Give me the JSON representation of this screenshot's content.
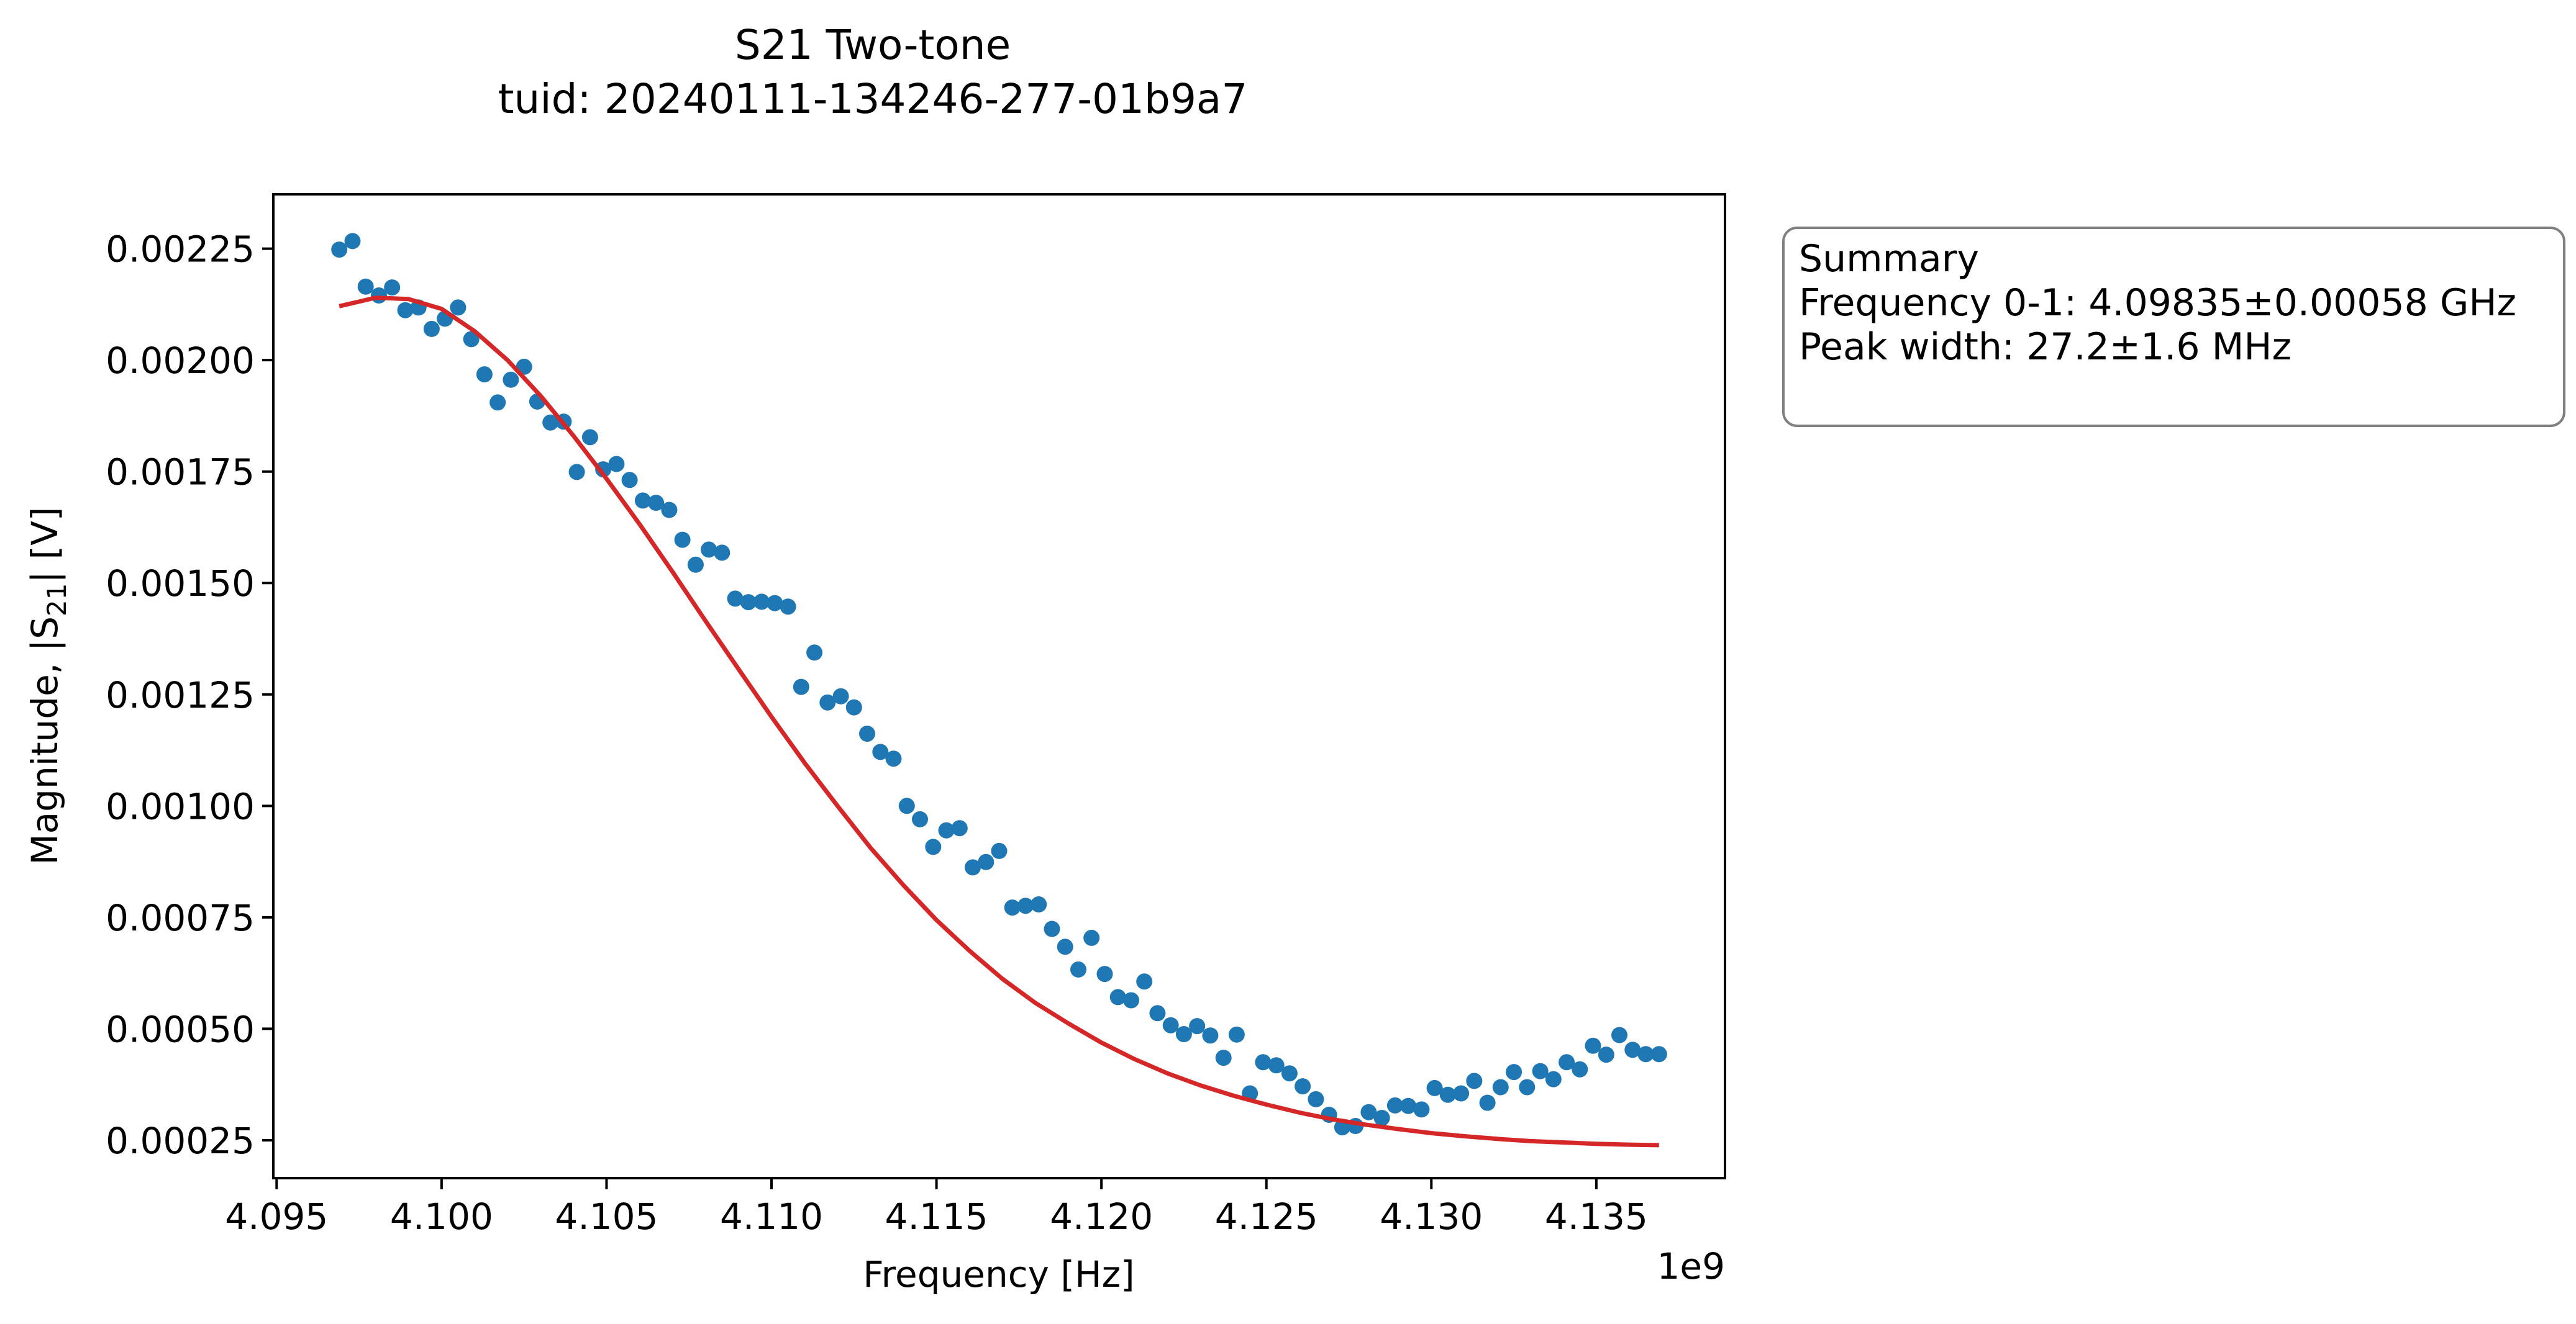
{
  "chart_data": {
    "type": "scatter",
    "title": "S21 Two-tone",
    "subtitle": "tuid: 20240111-134246-277-01b9a7",
    "xlabel": "Frequency [Hz]",
    "ylabel_main": "Magnitude, |S",
    "ylabel_sub": "21",
    "ylabel_end": "| [V]",
    "x_offset_label": "1e9",
    "xlim": [
      4.0949,
      4.1389
    ],
    "ylim": [
      0.000165,
      0.002372
    ],
    "x_ticks": [
      4.095,
      4.1,
      4.105,
      4.11,
      4.115,
      4.12,
      4.125,
      4.13,
      4.135
    ],
    "x_tick_labels": [
      "4.095",
      "4.100",
      "4.105",
      "4.110",
      "4.115",
      "4.120",
      "4.125",
      "4.130",
      "4.135"
    ],
    "y_ticks": [
      0.00025,
      0.0005,
      0.00075,
      0.001,
      0.00125,
      0.0015,
      0.00175,
      0.002,
      0.00225
    ],
    "y_tick_labels": [
      "0.00025",
      "0.00050",
      "0.00075",
      "0.00100",
      "0.00125",
      "0.00150",
      "0.00175",
      "0.00200",
      "0.00225"
    ],
    "grid": false,
    "colors": {
      "data": "#1f77b4",
      "fit": "#d62728",
      "summary_border": "#808080"
    },
    "series": [
      {
        "x": [
          4.0969,
          4.0973,
          4.0977,
          4.0981,
          4.0985,
          4.0989,
          4.0993,
          4.0997,
          4.1001,
          4.1005,
          4.1009,
          4.1013,
          4.1017,
          4.1021,
          4.1025,
          4.1029,
          4.1033,
          4.1037,
          4.1041,
          4.1045,
          4.1049,
          4.1053,
          4.1057,
          4.1061,
          4.1065,
          4.1069,
          4.1073,
          4.1077,
          4.1081,
          4.1085,
          4.1089,
          4.1093,
          4.1097,
          4.1101,
          4.1105,
          4.1109,
          4.1113,
          4.1117,
          4.1121,
          4.1125,
          4.1129,
          4.1133,
          4.1137,
          4.1141,
          4.1145,
          4.1149,
          4.1153,
          4.1157,
          4.1161,
          4.1165,
          4.1169,
          4.1173,
          4.1177,
          4.1181,
          4.1185,
          4.1189,
          4.1193,
          4.1197,
          4.1201,
          4.1205,
          4.1209,
          4.1213,
          4.1217,
          4.1221,
          4.1225,
          4.1229,
          4.1233,
          4.1237,
          4.1241,
          4.1245,
          4.1249,
          4.1253,
          4.1257,
          4.1261,
          4.1265,
          4.1269,
          4.1273,
          4.1277,
          4.1281,
          4.1285,
          4.1289,
          4.1293,
          4.1297,
          4.1301,
          4.1305,
          4.1309,
          4.1313,
          4.1317,
          4.1321,
          4.1325,
          4.1329,
          4.1333,
          4.1337,
          4.1341,
          4.1345,
          4.1349,
          4.1353,
          4.1357,
          4.1361,
          4.1365,
          4.1369
        ],
        "y": [
          0.002248,
          0.002267,
          0.002165,
          0.002145,
          0.002163,
          0.002112,
          0.002118,
          0.00207,
          0.002093,
          0.002118,
          0.002047,
          0.001968,
          0.001905,
          0.001956,
          0.001985,
          0.001907,
          0.00186,
          0.001862,
          0.001749,
          0.001827,
          0.001755,
          0.001767,
          0.001731,
          0.001685,
          0.00168,
          0.001664,
          0.001597,
          0.001541,
          0.001575,
          0.001568,
          0.001465,
          0.001457,
          0.001458,
          0.001455,
          0.001447,
          0.001267,
          0.001344,
          0.001232,
          0.001246,
          0.001221,
          0.001162,
          0.001121,
          0.001106,
          0.001,
          0.00097,
          0.000908,
          0.000945,
          0.00095,
          0.000862,
          0.000874,
          0.000899,
          0.000772,
          0.000776,
          0.000779,
          0.000724,
          0.000684,
          0.000633,
          0.000704,
          0.000623,
          0.000571,
          0.000564,
          0.000606,
          0.000535,
          0.000508,
          0.000488,
          0.000506,
          0.000485,
          0.000435,
          0.000487,
          0.000355,
          0.000425,
          0.000418,
          0.0004,
          0.000371,
          0.000342,
          0.000307,
          0.000279,
          0.000282,
          0.000313,
          0.0003,
          0.000328,
          0.000327,
          0.000319,
          0.000367,
          0.000352,
          0.000355,
          0.000383,
          0.000334,
          0.000369,
          0.000403,
          0.000369,
          0.000405,
          0.000387,
          0.000425,
          0.000409,
          0.000462,
          0.000442,
          0.000486,
          0.000453,
          0.000443,
          0.000443
        ]
      },
      {
        "x": [
          4.0969,
          4.098,
          4.099,
          4.1,
          4.101,
          4.102,
          4.103,
          4.104,
          4.105,
          4.106,
          4.107,
          4.108,
          4.109,
          4.11,
          4.111,
          4.112,
          4.113,
          4.114,
          4.115,
          4.116,
          4.117,
          4.118,
          4.119,
          4.12,
          4.121,
          4.122,
          4.123,
          4.124,
          4.125,
          4.126,
          4.127,
          4.128,
          4.129,
          4.13,
          4.131,
          4.132,
          4.133,
          4.134,
          4.135,
          4.136,
          4.1369
        ],
        "y": [
          0.002121,
          0.00214,
          0.002137,
          0.002115,
          0.002065,
          0.002,
          0.00192,
          0.00183,
          0.001734,
          0.001632,
          0.001525,
          0.001415,
          0.001307,
          0.0012,
          0.001097,
          0.001,
          0.000906,
          0.000822,
          0.000744,
          0.000675,
          0.000612,
          0.000558,
          0.000512,
          0.000469,
          0.000432,
          0.0004,
          0.000373,
          0.00035,
          0.00033,
          0.000312,
          0.000297,
          0.000285,
          0.000275,
          0.000266,
          0.000259,
          0.000253,
          0.000248,
          0.000245,
          0.000242,
          0.00024,
          0.000239
        ]
      }
    ]
  },
  "summary": {
    "heading": "Summary",
    "line1": "Frequency 0-1: 4.09835±0.00058 GHz",
    "line2": "Peak width: 27.2±1.6 MHz"
  }
}
